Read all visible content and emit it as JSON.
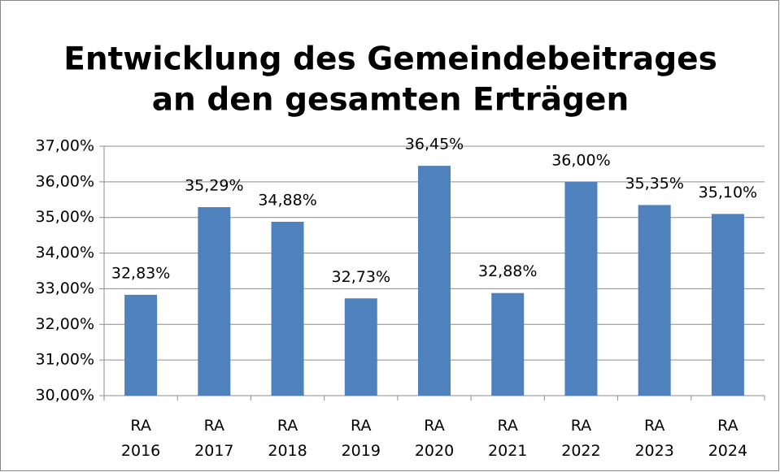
{
  "chart_data": {
    "type": "bar",
    "title": [
      "Entwicklung des Gemeindebeitrages",
      "an den gesamten Erträgen"
    ],
    "categories": [
      "RA 2016",
      "RA 2017",
      "RA 2018",
      "RA 2019",
      "RA 2020",
      "RA 2021",
      "RA 2022",
      "RA 2023",
      "RA 2024"
    ],
    "values": [
      32.83,
      35.29,
      34.88,
      32.73,
      36.45,
      32.88,
      36.0,
      35.35,
      35.1
    ],
    "value_labels": [
      "32,83%",
      "35,29%",
      "34,88%",
      "32,73%",
      "36,45%",
      "32,88%",
      "36,00%",
      "35,35%",
      "35,10%"
    ],
    "color": "#4f81bd",
    "ylim": [
      30,
      37
    ],
    "yticks": [
      {
        "value": 30,
        "label": "30,00%"
      },
      {
        "value": 31,
        "label": "31,00%"
      },
      {
        "value": 32,
        "label": "32,00%"
      },
      {
        "value": 33,
        "label": "33,00%"
      },
      {
        "value": 34,
        "label": "34,00%"
      },
      {
        "value": 35,
        "label": "35,00%"
      },
      {
        "value": 36,
        "label": "36,00%"
      },
      {
        "value": 37,
        "label": "37,00%"
      }
    ],
    "grid": true
  }
}
